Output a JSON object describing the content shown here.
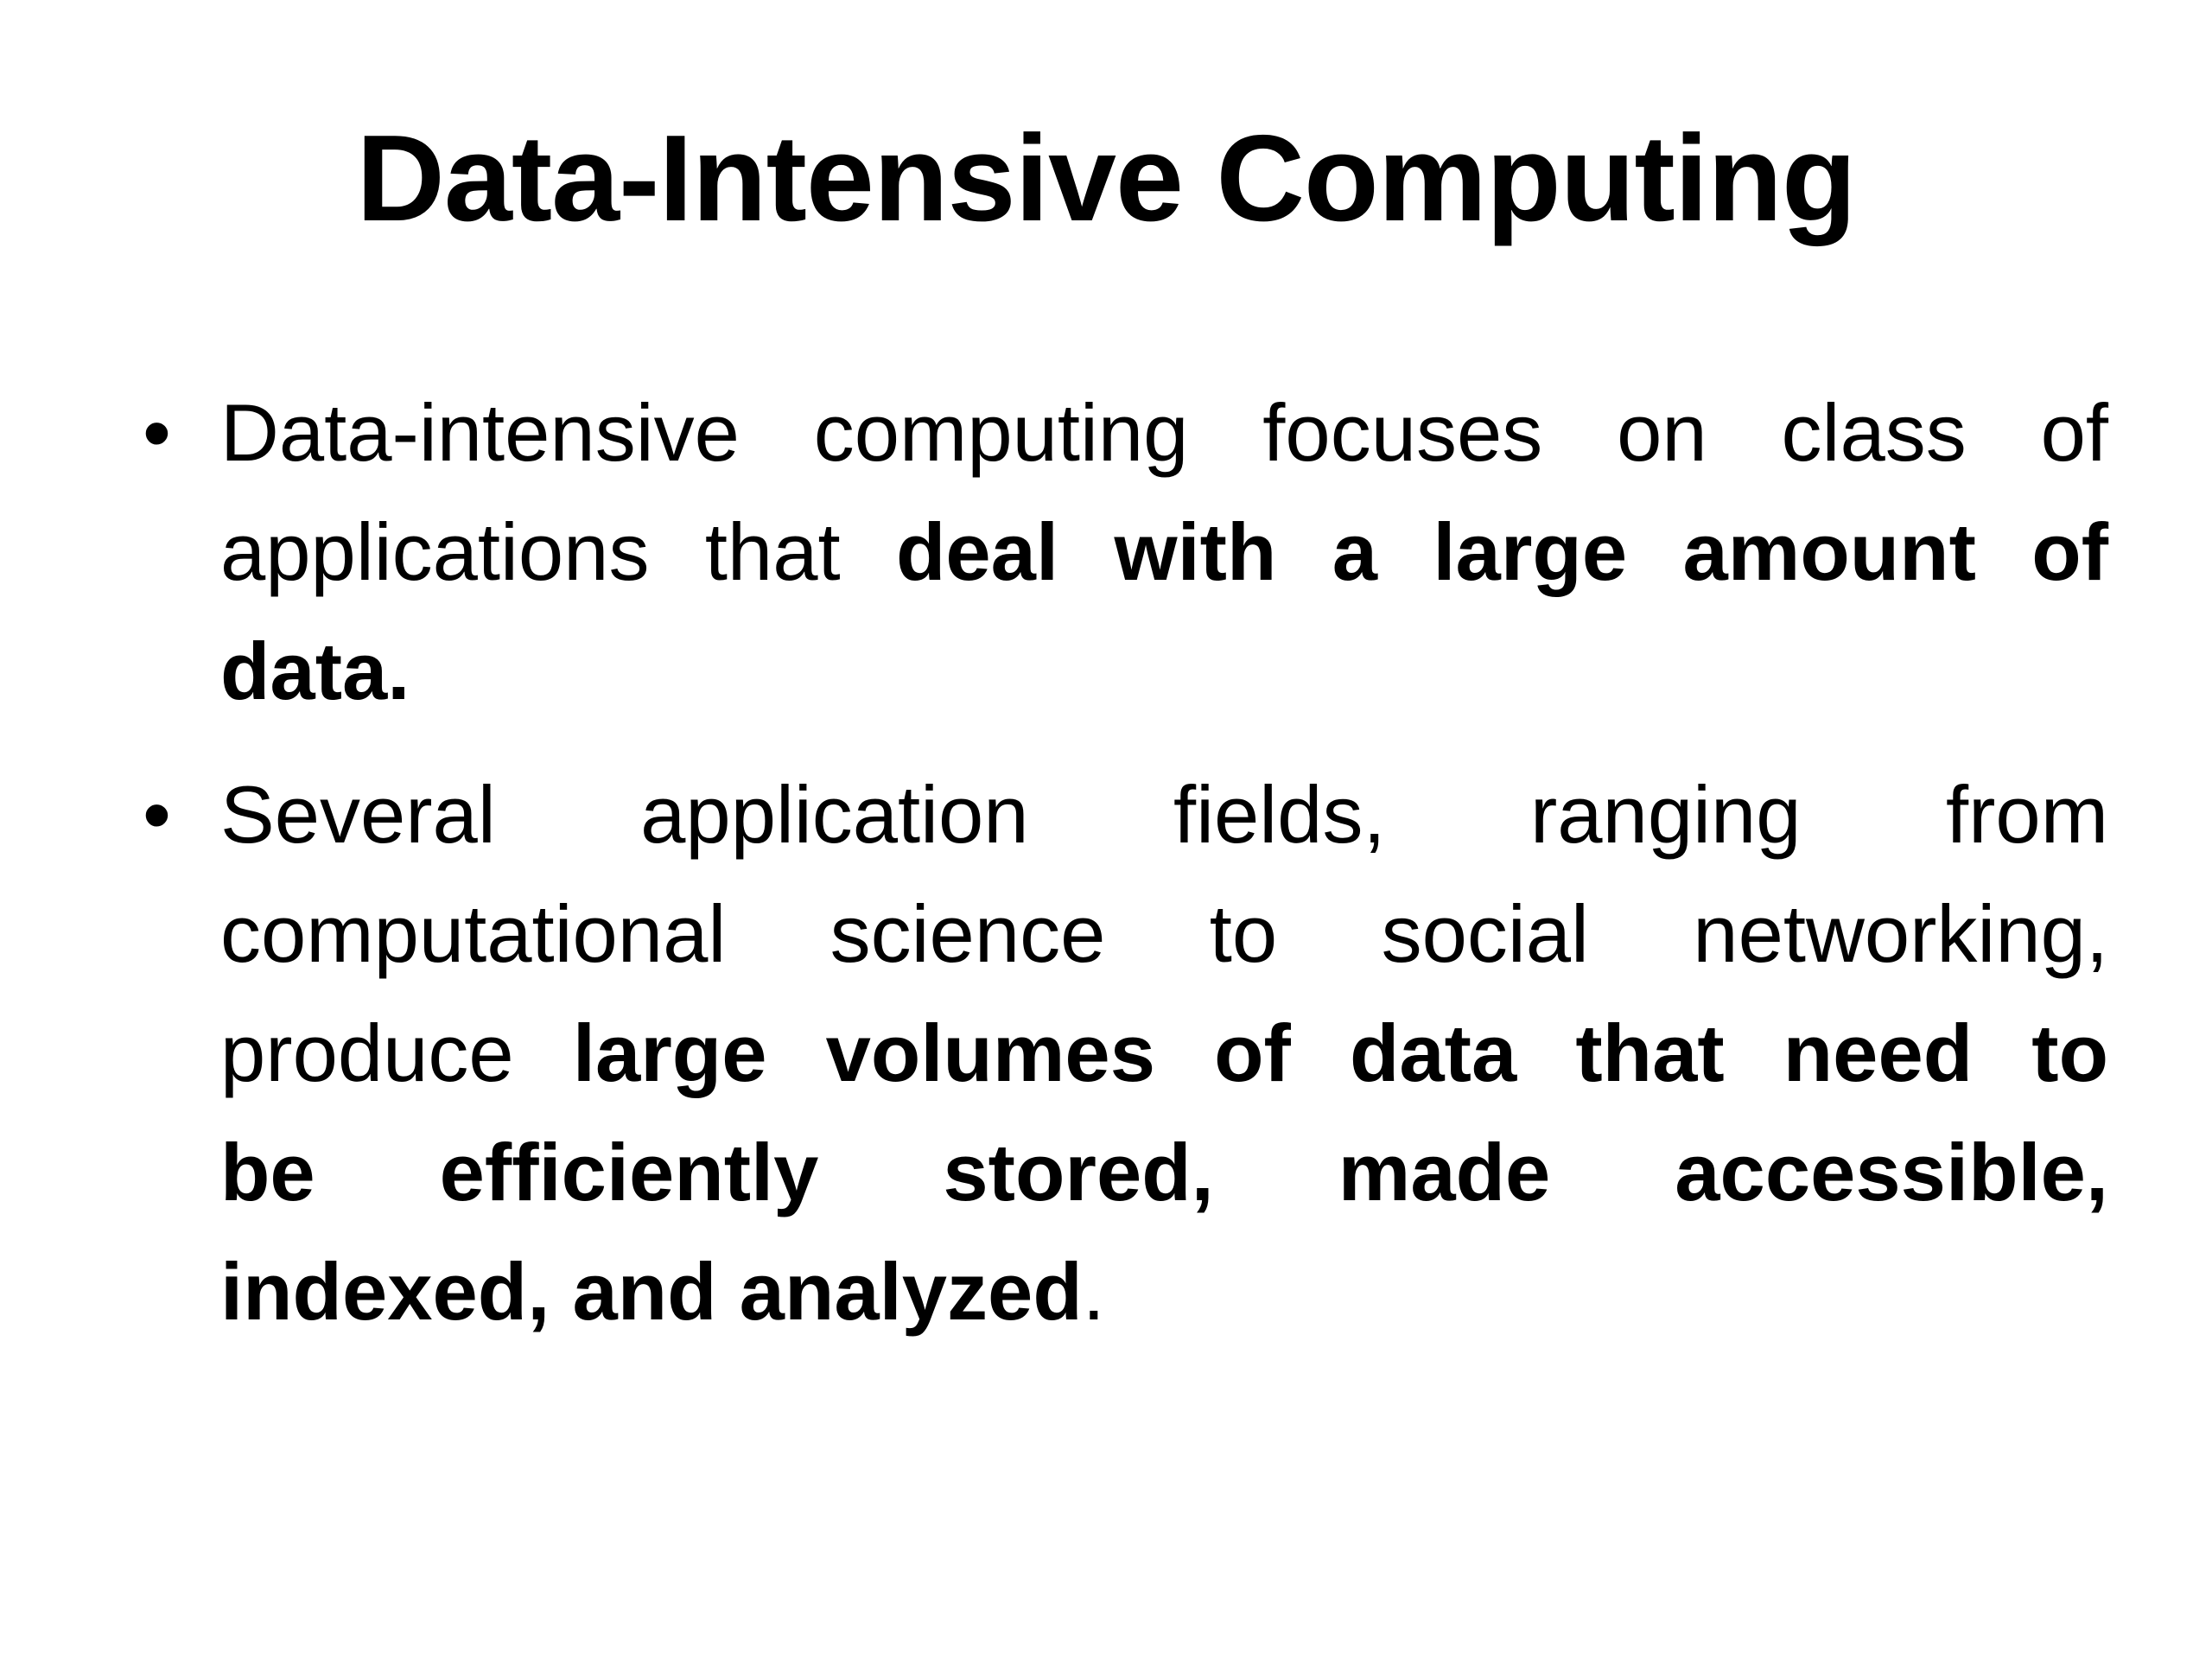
{
  "slide": {
    "title": "Data-Intensive Computing",
    "bullet_glyph": "•",
    "colors": {
      "background": "#ffffff",
      "text": "#000000"
    },
    "bullets": [
      {
        "lines": [
          {
            "justify": true,
            "runs": [
              {
                "text": "Data-intensive computing focuses on class of",
                "bold": false
              }
            ]
          },
          {
            "justify": true,
            "runs": [
              {
                "text": "applications that ",
                "bold": false
              },
              {
                "text": "deal with a large amount of",
                "bold": true
              }
            ]
          },
          {
            "justify": false,
            "runs": [
              {
                "text": "data.",
                "bold": true
              }
            ]
          }
        ]
      },
      {
        "lines": [
          {
            "justify": true,
            "runs": [
              {
                "text": "Several application fields, ranging from",
                "bold": false
              }
            ]
          },
          {
            "justify": true,
            "runs": [
              {
                "text": "computational science to social networking,",
                "bold": false
              }
            ]
          },
          {
            "justify": true,
            "runs": [
              {
                "text": "produce ",
                "bold": false
              },
              {
                "text": "large volumes of data that need to",
                "bold": true
              }
            ]
          },
          {
            "justify": true,
            "runs": [
              {
                "text": "be efficiently stored, made accessible,",
                "bold": true
              }
            ]
          },
          {
            "justify": false,
            "runs": [
              {
                "text": "indexed, and analyzed",
                "bold": true
              },
              {
                "text": ".",
                "bold": false
              }
            ]
          }
        ]
      }
    ]
  }
}
